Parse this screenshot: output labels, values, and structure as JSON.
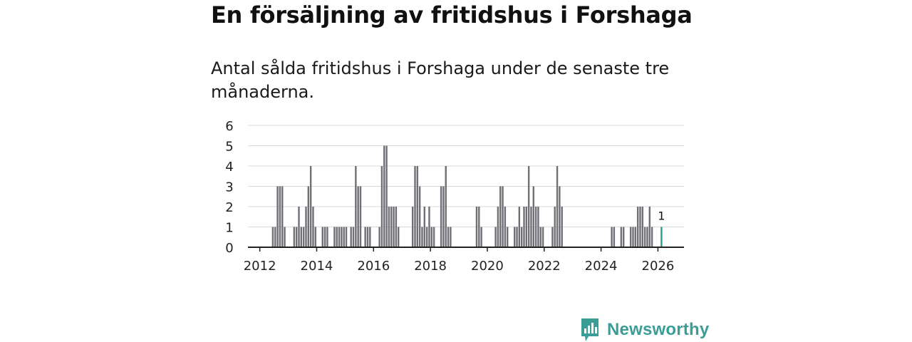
{
  "header": {
    "title": "En försäljning av fritidshus i Forshaga",
    "subtitle": "Antal sålda fritidshus i Forshaga under de senaste tre månaderna."
  },
  "brand": {
    "name": "Newsworthy",
    "color": "#3a9e97"
  },
  "colors": {
    "bar": "#6f6f76",
    "highlight": "#2a9d8f",
    "grid": "#d9d9d9",
    "axis": "#222222"
  },
  "chart_data": {
    "type": "bar",
    "title": "En försäljning av fritidshus i Forshaga",
    "xlabel": "",
    "ylabel": "",
    "ylim": [
      0,
      6
    ],
    "xlim": [
      "2011-08",
      "2026-12"
    ],
    "yticks": [
      "0",
      "1",
      "2",
      "3",
      "4",
      "5",
      "6"
    ],
    "xticks": [
      "2012",
      "2014",
      "2016",
      "2018",
      "2020",
      "2022",
      "2024",
      "2026"
    ],
    "grid": true,
    "highlight": {
      "date": "2026-02",
      "value": 1,
      "label": "1"
    },
    "dates": [
      "2012-06",
      "2012-07",
      "2012-08",
      "2012-09",
      "2012-10",
      "2012-11",
      "2013-03",
      "2013-04",
      "2013-05",
      "2013-06",
      "2013-07",
      "2013-08",
      "2013-09",
      "2013-10",
      "2013-11",
      "2013-12",
      "2014-03",
      "2014-04",
      "2014-05",
      "2014-08",
      "2014-09",
      "2014-10",
      "2014-11",
      "2014-12",
      "2015-01",
      "2015-03",
      "2015-04",
      "2015-05",
      "2015-06",
      "2015-07",
      "2015-09",
      "2015-10",
      "2015-11",
      "2016-03",
      "2016-04",
      "2016-05",
      "2016-06",
      "2016-07",
      "2016-08",
      "2016-09",
      "2016-10",
      "2016-11",
      "2017-05",
      "2017-06",
      "2017-07",
      "2017-08",
      "2017-09",
      "2017-10",
      "2017-11",
      "2017-12",
      "2018-01",
      "2018-02",
      "2018-05",
      "2018-06",
      "2018-07",
      "2018-08",
      "2018-09",
      "2019-08",
      "2019-09",
      "2019-10",
      "2020-04",
      "2020-05",
      "2020-06",
      "2020-07",
      "2020-08",
      "2020-09",
      "2020-12",
      "2021-01",
      "2021-02",
      "2021-03",
      "2021-04",
      "2021-05",
      "2021-06",
      "2021-07",
      "2021-08",
      "2021-09",
      "2021-10",
      "2021-11",
      "2021-12",
      "2022-04",
      "2022-05",
      "2022-06",
      "2022-07",
      "2022-08",
      "2024-05",
      "2024-06",
      "2024-09",
      "2024-10",
      "2025-01",
      "2025-02",
      "2025-03",
      "2025-04",
      "2025-05",
      "2025-06",
      "2025-07",
      "2025-08",
      "2025-09",
      "2025-10",
      "2026-02"
    ],
    "values": [
      1,
      1,
      3,
      3,
      3,
      1,
      1,
      1,
      2,
      1,
      1,
      2,
      3,
      4,
      2,
      1,
      1,
      1,
      1,
      1,
      1,
      1,
      1,
      1,
      1,
      1,
      1,
      4,
      3,
      3,
      1,
      1,
      1,
      1,
      4,
      5,
      5,
      2,
      2,
      2,
      2,
      1,
      2,
      4,
      4,
      3,
      1,
      2,
      1,
      2,
      1,
      1,
      3,
      3,
      4,
      1,
      1,
      2,
      2,
      1,
      1,
      2,
      3,
      3,
      2,
      1,
      1,
      1,
      2,
      1,
      2,
      2,
      4,
      2,
      3,
      2,
      2,
      1,
      1,
      1,
      2,
      4,
      3,
      2,
      1,
      1,
      1,
      1,
      1,
      1,
      1,
      2,
      2,
      2,
      1,
      1,
      2,
      1,
      1
    ]
  }
}
